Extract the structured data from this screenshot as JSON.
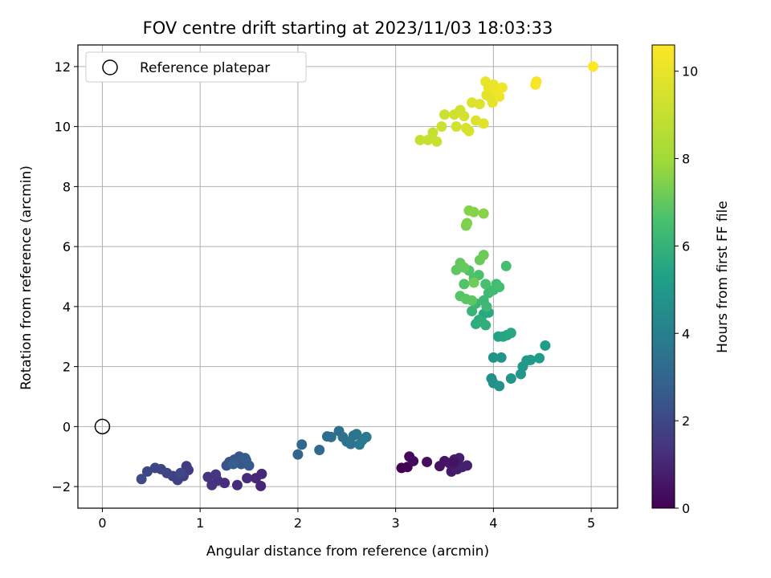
{
  "chart_data": {
    "type": "scatter",
    "title": "FOV centre drift starting at 2023/11/03 18:03:33",
    "xlabel": "Angular distance from reference (arcmin)",
    "ylabel": "Rotation from reference (arcmin)",
    "xlim": [
      -0.25,
      5.27
    ],
    "ylim": [
      -2.72,
      12.72
    ],
    "xticks": [
      0,
      1,
      2,
      3,
      4,
      5
    ],
    "yticks": [
      -2,
      0,
      2,
      4,
      6,
      8,
      10,
      12
    ],
    "grid": true,
    "legend": {
      "position": "top-left",
      "entries": [
        "Reference platepar"
      ]
    },
    "reference_point": {
      "x": 0,
      "y": 0,
      "label": "Reference platepar"
    },
    "colorbar": {
      "label": "Hours from first FF file",
      "range": [
        0,
        10.6
      ],
      "ticks": [
        0,
        2,
        4,
        6,
        8,
        10
      ],
      "colormap": "viridis"
    },
    "points": [
      {
        "x": 3.06,
        "y": -1.38,
        "t": 0.0
      },
      {
        "x": 3.12,
        "y": -1.35,
        "t": 0.1
      },
      {
        "x": 3.14,
        "y": -1.0,
        "t": 0.2
      },
      {
        "x": 3.18,
        "y": -1.15,
        "t": 0.25
      },
      {
        "x": 3.32,
        "y": -1.18,
        "t": 0.35
      },
      {
        "x": 3.45,
        "y": -1.32,
        "t": 0.45
      },
      {
        "x": 3.5,
        "y": -1.15,
        "t": 0.55
      },
      {
        "x": 3.55,
        "y": -1.22,
        "t": 0.6
      },
      {
        "x": 3.57,
        "y": -1.5,
        "t": 0.65
      },
      {
        "x": 3.6,
        "y": -1.1,
        "t": 0.7
      },
      {
        "x": 3.63,
        "y": -1.42,
        "t": 0.75
      },
      {
        "x": 3.65,
        "y": -1.05,
        "t": 0.8
      },
      {
        "x": 3.68,
        "y": -1.35,
        "t": 0.85
      },
      {
        "x": 3.73,
        "y": -1.3,
        "t": 0.9
      },
      {
        "x": 3.6,
        "y": -1.2,
        "t": 0.5
      },
      {
        "x": 1.62,
        "y": -1.98,
        "t": 1.0
      },
      {
        "x": 1.57,
        "y": -1.72,
        "t": 1.05
      },
      {
        "x": 1.63,
        "y": -1.58,
        "t": 1.1
      },
      {
        "x": 1.48,
        "y": -1.72,
        "t": 1.15
      },
      {
        "x": 1.38,
        "y": -1.95,
        "t": 1.2
      },
      {
        "x": 1.25,
        "y": -1.88,
        "t": 1.25
      },
      {
        "x": 1.18,
        "y": -1.8,
        "t": 1.3
      },
      {
        "x": 1.12,
        "y": -1.95,
        "t": 1.35
      },
      {
        "x": 1.08,
        "y": -1.68,
        "t": 1.4
      },
      {
        "x": 1.16,
        "y": -1.6,
        "t": 1.45
      },
      {
        "x": 0.86,
        "y": -1.32,
        "t": 1.6
      },
      {
        "x": 0.88,
        "y": -1.45,
        "t": 1.65
      },
      {
        "x": 0.83,
        "y": -1.65,
        "t": 1.7
      },
      {
        "x": 0.77,
        "y": -1.78,
        "t": 1.75
      },
      {
        "x": 0.72,
        "y": -1.65,
        "t": 1.8
      },
      {
        "x": 0.66,
        "y": -1.55,
        "t": 1.85
      },
      {
        "x": 0.6,
        "y": -1.42,
        "t": 1.9
      },
      {
        "x": 0.54,
        "y": -1.38,
        "t": 1.95
      },
      {
        "x": 0.46,
        "y": -1.5,
        "t": 2.0
      },
      {
        "x": 0.4,
        "y": -1.75,
        "t": 2.1
      },
      {
        "x": 0.8,
        "y": -1.55,
        "t": 2.05
      },
      {
        "x": 1.27,
        "y": -1.3,
        "t": 2.3
      },
      {
        "x": 1.3,
        "y": -1.18,
        "t": 2.35
      },
      {
        "x": 1.35,
        "y": -1.1,
        "t": 2.4
      },
      {
        "x": 1.4,
        "y": -1.0,
        "t": 2.45
      },
      {
        "x": 1.42,
        "y": -1.25,
        "t": 2.5
      },
      {
        "x": 1.47,
        "y": -1.12,
        "t": 2.55
      },
      {
        "x": 1.5,
        "y": -1.3,
        "t": 2.6
      },
      {
        "x": 1.46,
        "y": -1.05,
        "t": 2.65
      },
      {
        "x": 1.34,
        "y": -1.25,
        "t": 2.7
      },
      {
        "x": 2.0,
        "y": -0.93,
        "t": 3.0
      },
      {
        "x": 2.04,
        "y": -0.6,
        "t": 3.1
      },
      {
        "x": 2.22,
        "y": -0.78,
        "t": 3.2
      },
      {
        "x": 2.3,
        "y": -0.33,
        "t": 3.3
      },
      {
        "x": 2.34,
        "y": -0.35,
        "t": 3.35
      },
      {
        "x": 2.42,
        "y": -0.15,
        "t": 3.4
      },
      {
        "x": 2.46,
        "y": -0.35,
        "t": 3.45
      },
      {
        "x": 2.5,
        "y": -0.5,
        "t": 3.5
      },
      {
        "x": 2.54,
        "y": -0.58,
        "t": 3.55
      },
      {
        "x": 2.57,
        "y": -0.3,
        "t": 3.6
      },
      {
        "x": 2.6,
        "y": -0.25,
        "t": 3.65
      },
      {
        "x": 2.63,
        "y": -0.6,
        "t": 3.7
      },
      {
        "x": 2.66,
        "y": -0.45,
        "t": 3.75
      },
      {
        "x": 2.7,
        "y": -0.35,
        "t": 3.8
      },
      {
        "x": 3.98,
        "y": 1.6,
        "t": 4.6
      },
      {
        "x": 4.0,
        "y": 1.45,
        "t": 4.65
      },
      {
        "x": 4.06,
        "y": 1.35,
        "t": 4.7
      },
      {
        "x": 4.0,
        "y": 2.3,
        "t": 4.75
      },
      {
        "x": 4.08,
        "y": 2.3,
        "t": 4.8
      },
      {
        "x": 4.18,
        "y": 1.6,
        "t": 4.85
      },
      {
        "x": 4.28,
        "y": 1.75,
        "t": 4.9
      },
      {
        "x": 4.3,
        "y": 2.0,
        "t": 4.95
      },
      {
        "x": 4.34,
        "y": 2.2,
        "t": 5.0
      },
      {
        "x": 4.38,
        "y": 2.22,
        "t": 5.05
      },
      {
        "x": 4.47,
        "y": 2.28,
        "t": 5.1
      },
      {
        "x": 4.53,
        "y": 2.7,
        "t": 5.15
      },
      {
        "x": 4.05,
        "y": 3.0,
        "t": 5.4
      },
      {
        "x": 4.1,
        "y": 3.0,
        "t": 5.45
      },
      {
        "x": 4.14,
        "y": 3.05,
        "t": 5.5
      },
      {
        "x": 4.18,
        "y": 3.12,
        "t": 5.55
      },
      {
        "x": 3.95,
        "y": 3.8,
        "t": 5.6
      },
      {
        "x": 3.9,
        "y": 3.75,
        "t": 5.65
      },
      {
        "x": 3.85,
        "y": 3.55,
        "t": 5.7
      },
      {
        "x": 3.82,
        "y": 3.42,
        "t": 5.75
      },
      {
        "x": 3.88,
        "y": 3.5,
        "t": 5.8
      },
      {
        "x": 3.92,
        "y": 3.38,
        "t": 5.85
      },
      {
        "x": 3.78,
        "y": 3.85,
        "t": 6.1
      },
      {
        "x": 3.82,
        "y": 4.1,
        "t": 6.15
      },
      {
        "x": 3.9,
        "y": 4.2,
        "t": 6.2
      },
      {
        "x": 3.93,
        "y": 4.0,
        "t": 6.25
      },
      {
        "x": 3.95,
        "y": 4.45,
        "t": 6.3
      },
      {
        "x": 4.0,
        "y": 4.55,
        "t": 6.35
      },
      {
        "x": 4.03,
        "y": 4.75,
        "t": 6.4
      },
      {
        "x": 4.06,
        "y": 4.65,
        "t": 6.45
      },
      {
        "x": 4.13,
        "y": 5.35,
        "t": 6.5
      },
      {
        "x": 3.92,
        "y": 4.75,
        "t": 6.55
      },
      {
        "x": 3.85,
        "y": 5.05,
        "t": 6.6
      },
      {
        "x": 3.8,
        "y": 4.95,
        "t": 6.65
      },
      {
        "x": 3.75,
        "y": 5.2,
        "t": 6.7
      },
      {
        "x": 3.7,
        "y": 4.75,
        "t": 6.75
      },
      {
        "x": 3.66,
        "y": 4.35,
        "t": 6.8
      },
      {
        "x": 3.72,
        "y": 4.25,
        "t": 6.85
      },
      {
        "x": 3.78,
        "y": 4.2,
        "t": 6.9
      },
      {
        "x": 3.62,
        "y": 5.22,
        "t": 6.95
      },
      {
        "x": 3.66,
        "y": 5.45,
        "t": 7.0
      },
      {
        "x": 3.7,
        "y": 5.3,
        "t": 7.05
      },
      {
        "x": 3.86,
        "y": 5.55,
        "t": 7.1
      },
      {
        "x": 3.9,
        "y": 5.72,
        "t": 7.15
      },
      {
        "x": 3.8,
        "y": 4.8,
        "t": 7.2
      },
      {
        "x": 3.72,
        "y": 6.7,
        "t": 7.4
      },
      {
        "x": 3.73,
        "y": 6.78,
        "t": 7.45
      },
      {
        "x": 3.75,
        "y": 7.2,
        "t": 7.5
      },
      {
        "x": 3.8,
        "y": 7.15,
        "t": 7.55
      },
      {
        "x": 3.9,
        "y": 7.1,
        "t": 7.6
      },
      {
        "x": 3.25,
        "y": 9.55,
        "t": 9.0
      },
      {
        "x": 3.33,
        "y": 9.55,
        "t": 9.05
      },
      {
        "x": 3.38,
        "y": 9.8,
        "t": 9.1
      },
      {
        "x": 3.42,
        "y": 9.5,
        "t": 9.15
      },
      {
        "x": 3.47,
        "y": 10.0,
        "t": 9.2
      },
      {
        "x": 3.5,
        "y": 10.4,
        "t": 9.25
      },
      {
        "x": 3.6,
        "y": 10.4,
        "t": 9.3
      },
      {
        "x": 3.62,
        "y": 10.0,
        "t": 9.35
      },
      {
        "x": 3.66,
        "y": 10.55,
        "t": 9.4
      },
      {
        "x": 3.7,
        "y": 10.35,
        "t": 9.45
      },
      {
        "x": 3.72,
        "y": 9.95,
        "t": 9.5
      },
      {
        "x": 3.75,
        "y": 9.85,
        "t": 9.55
      },
      {
        "x": 3.78,
        "y": 10.8,
        "t": 9.6
      },
      {
        "x": 3.82,
        "y": 10.2,
        "t": 9.65
      },
      {
        "x": 3.86,
        "y": 10.75,
        "t": 9.7
      },
      {
        "x": 3.9,
        "y": 10.1,
        "t": 9.75
      },
      {
        "x": 3.93,
        "y": 11.05,
        "t": 9.8
      },
      {
        "x": 3.96,
        "y": 11.0,
        "t": 9.85
      },
      {
        "x": 3.99,
        "y": 10.8,
        "t": 9.9
      },
      {
        "x": 3.92,
        "y": 11.5,
        "t": 10.0
      },
      {
        "x": 3.95,
        "y": 11.3,
        "t": 10.05
      },
      {
        "x": 4.0,
        "y": 11.4,
        "t": 10.1
      },
      {
        "x": 4.03,
        "y": 11.15,
        "t": 10.15
      },
      {
        "x": 4.06,
        "y": 11.0,
        "t": 10.2
      },
      {
        "x": 4.09,
        "y": 11.3,
        "t": 10.25
      },
      {
        "x": 4.43,
        "y": 11.4,
        "t": 10.35
      },
      {
        "x": 4.44,
        "y": 11.5,
        "t": 10.4
      },
      {
        "x": 5.02,
        "y": 12.0,
        "t": 10.6
      }
    ]
  }
}
